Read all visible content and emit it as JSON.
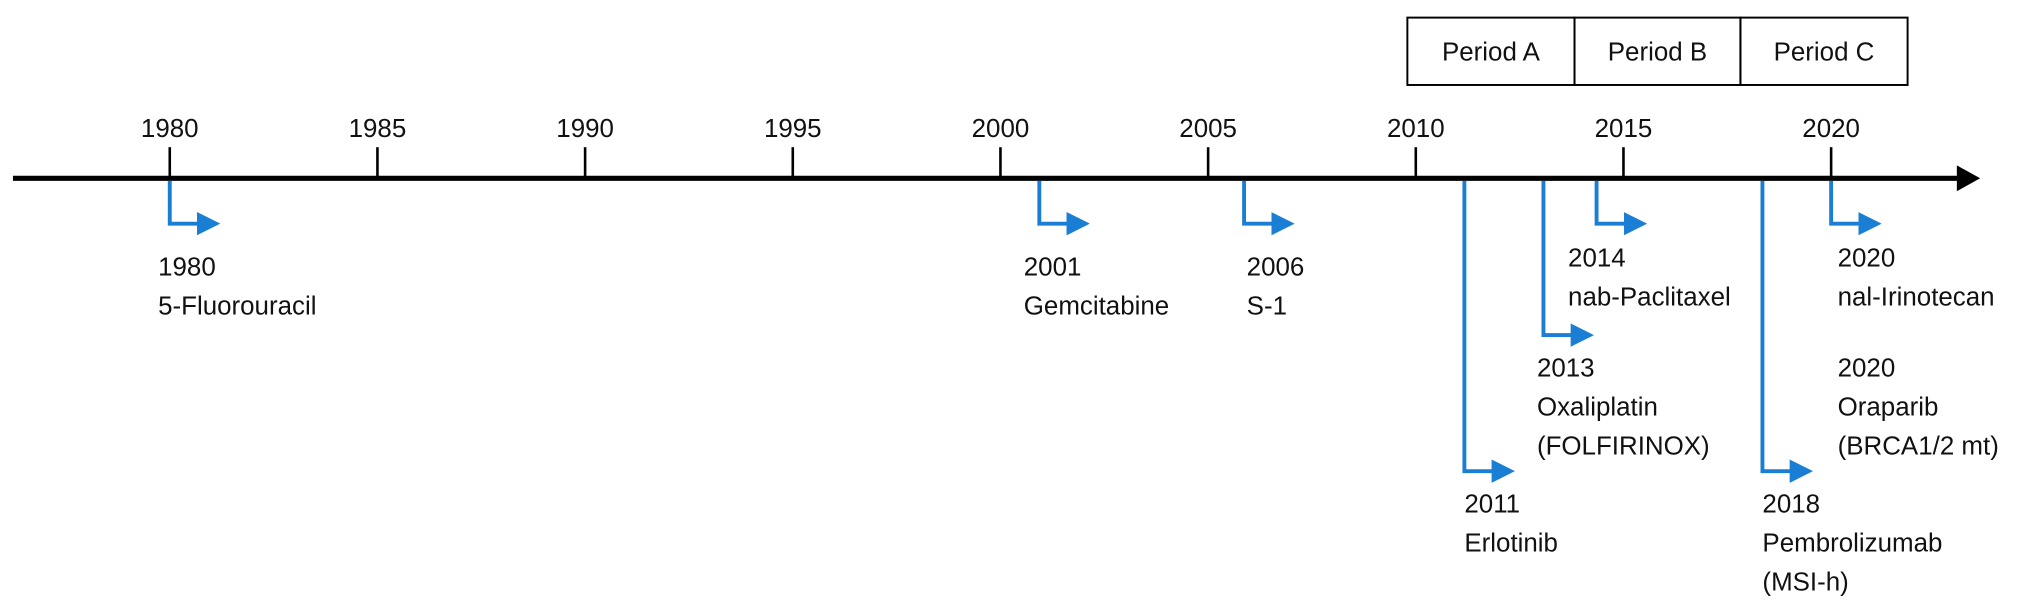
{
  "timeline": {
    "periods": [
      "Period A",
      "Period B",
      "Period C"
    ],
    "axis_ticks": [
      "1980",
      "1985",
      "1990",
      "1995",
      "2000",
      "2005",
      "2010",
      "2015",
      "2020"
    ],
    "events": [
      {
        "lines": [
          "1980",
          "5-Fluorouracil"
        ]
      },
      {
        "lines": [
          "2001",
          "Gemcitabine"
        ]
      },
      {
        "lines": [
          "2006",
          "S-1"
        ]
      },
      {
        "lines": [
          "2011",
          "Erlotinib"
        ]
      },
      {
        "lines": [
          "2013",
          "Oxaliplatin",
          "(FOLFIRINOX)"
        ]
      },
      {
        "lines": [
          "2014",
          "nab-Paclitaxel"
        ]
      },
      {
        "lines": [
          "2018",
          "Pembrolizumab",
          "(MSI-h)"
        ]
      },
      {
        "lines": [
          "2020",
          "nal-Irinotecan"
        ]
      },
      {
        "lines": [
          "2020",
          "Oraparib",
          "(BRCA1/2 mt)"
        ]
      }
    ]
  }
}
